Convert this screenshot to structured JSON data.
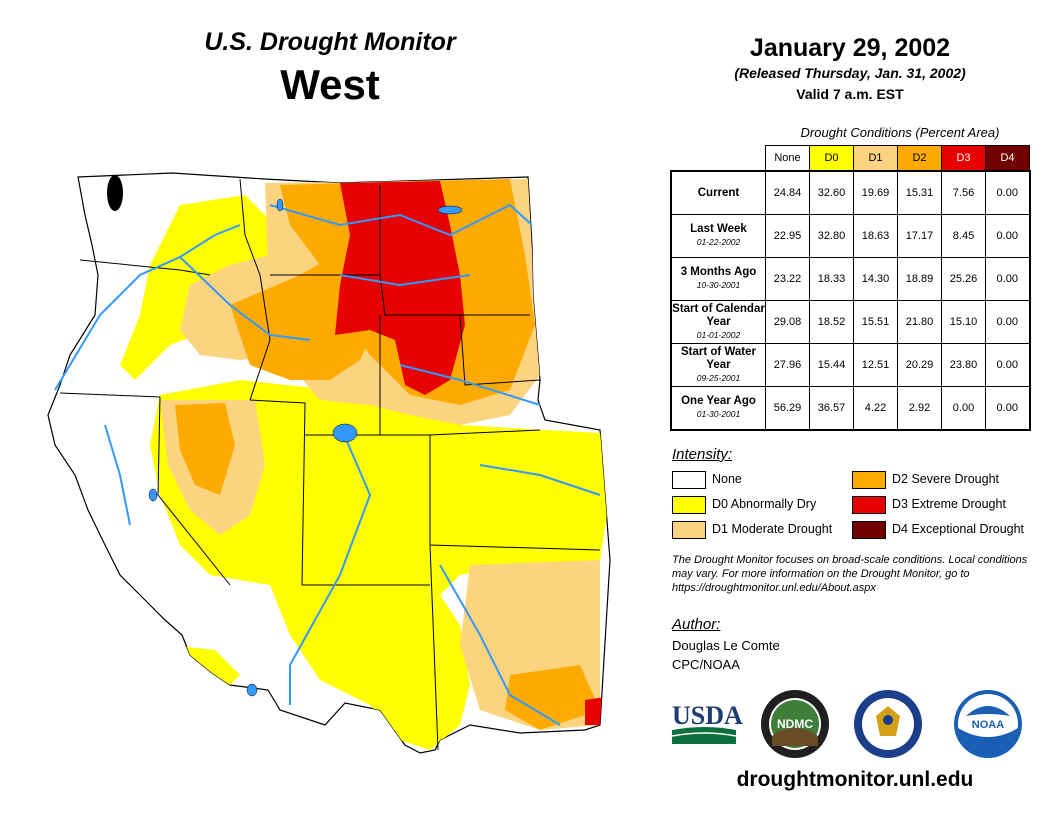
{
  "header": {
    "title": "U.S. Drought Monitor",
    "region": "West",
    "date": "January 29, 2002",
    "released": "(Released Thursday, Jan. 31, 2002)",
    "valid": "Valid 7 a.m. EST"
  },
  "stats_table": {
    "caption": "Drought Conditions (Percent Area)",
    "columns": [
      "None",
      "D0",
      "D1",
      "D2",
      "D3",
      "D4"
    ],
    "column_colors": [
      "#ffffff",
      "#ffff00",
      "#fcd37f",
      "#ffaa00",
      "#e60000",
      "#730000"
    ],
    "rows": [
      {
        "label": "Current",
        "sublabel": "",
        "values": [
          "24.84",
          "32.60",
          "19.69",
          "15.31",
          "7.56",
          "0.00"
        ]
      },
      {
        "label": "Last Week",
        "sublabel": "01-22-2002",
        "values": [
          "22.95",
          "32.80",
          "18.63",
          "17.17",
          "8.45",
          "0.00"
        ]
      },
      {
        "label": "3 Months Ago",
        "sublabel": "10-30-2001",
        "values": [
          "23.22",
          "18.33",
          "14.30",
          "18.89",
          "25.26",
          "0.00"
        ]
      },
      {
        "label": "Start of Calendar Year",
        "sublabel": "01-01-2002",
        "values": [
          "29.08",
          "18.52",
          "15.51",
          "21.80",
          "15.10",
          "0.00"
        ]
      },
      {
        "label": "Start of Water Year",
        "sublabel": "09-25-2001",
        "values": [
          "27.96",
          "15.44",
          "12.51",
          "20.29",
          "23.80",
          "0.00"
        ]
      },
      {
        "label": "One Year Ago",
        "sublabel": "01-30-2001",
        "values": [
          "56.29",
          "36.57",
          "4.22",
          "2.92",
          "0.00",
          "0.00"
        ]
      }
    ]
  },
  "legend": {
    "title": "Intensity:",
    "items": [
      {
        "label": "None",
        "color": "#ffffff"
      },
      {
        "label": "D0 Abnormally Dry",
        "color": "#ffff00"
      },
      {
        "label": "D1 Moderate Drought",
        "color": "#fcd37f"
      },
      {
        "label": "D2 Severe Drought",
        "color": "#ffaa00"
      },
      {
        "label": "D3 Extreme Drought",
        "color": "#e60000"
      },
      {
        "label": "D4 Exceptional Drought",
        "color": "#730000"
      }
    ]
  },
  "note": "The Drought Monitor focuses on broad-scale conditions. Local conditions may vary. For more information on the Drought Monitor, go to https://droughtmonitor.unl.edu/About.aspx",
  "author": {
    "title": "Author:",
    "name": "Douglas Le Comte",
    "org": "CPC/NOAA"
  },
  "logos": {
    "usda": "USDA",
    "ndmc": "NDMC",
    "noaa": "NOAA"
  },
  "website": "droughtmonitor.unl.edu",
  "colors": {
    "water": "#3399ff",
    "border": "#000000"
  }
}
